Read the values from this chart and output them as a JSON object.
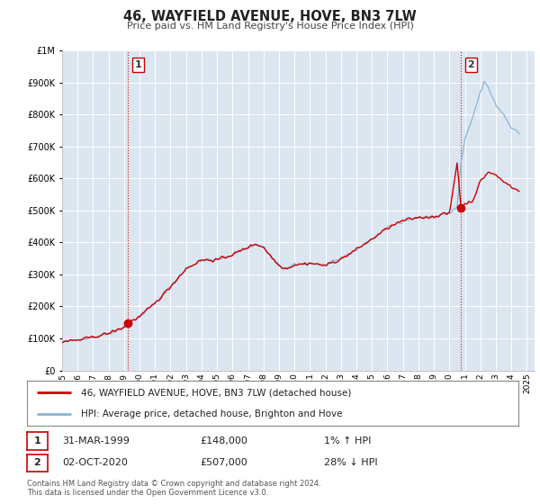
{
  "title": "46, WAYFIELD AVENUE, HOVE, BN3 7LW",
  "subtitle": "Price paid vs. HM Land Registry's House Price Index (HPI)",
  "background_color": "#ffffff",
  "plot_bg_color": "#dce6f1",
  "grid_color": "#ffffff",
  "hpi_color": "#8ab4d4",
  "price_color": "#cc0000",
  "ylim": [
    0,
    1000000
  ],
  "xlim_start": 1995.0,
  "xlim_end": 2025.5,
  "yticks": [
    0,
    100000,
    200000,
    300000,
    400000,
    500000,
    600000,
    700000,
    800000,
    900000,
    1000000
  ],
  "ytick_labels": [
    "£0",
    "£100K",
    "£200K",
    "£300K",
    "£400K",
    "£500K",
    "£600K",
    "£700K",
    "£800K",
    "£900K",
    "£1M"
  ],
  "xticks": [
    1995,
    1996,
    1997,
    1998,
    1999,
    2000,
    2001,
    2002,
    2003,
    2004,
    2005,
    2006,
    2007,
    2008,
    2009,
    2010,
    2011,
    2012,
    2013,
    2014,
    2015,
    2016,
    2017,
    2018,
    2019,
    2020,
    2021,
    2022,
    2023,
    2024,
    2025
  ],
  "marker1_x": 1999.25,
  "marker1_y": 148000,
  "marker1_label": "1",
  "marker1_date": "31-MAR-1999",
  "marker1_price": "£148,000",
  "marker1_hpi": "1% ↑ HPI",
  "marker2_x": 2020.75,
  "marker2_y": 507000,
  "marker2_label": "2",
  "marker2_date": "02-OCT-2020",
  "marker2_price": "£507,000",
  "marker2_hpi": "28% ↓ HPI",
  "legend_label1": "46, WAYFIELD AVENUE, HOVE, BN3 7LW (detached house)",
  "legend_label2": "HPI: Average price, detached house, Brighton and Hove",
  "footer1": "Contains HM Land Registry data © Crown copyright and database right 2024.",
  "footer2": "This data is licensed under the Open Government Licence v3.0."
}
